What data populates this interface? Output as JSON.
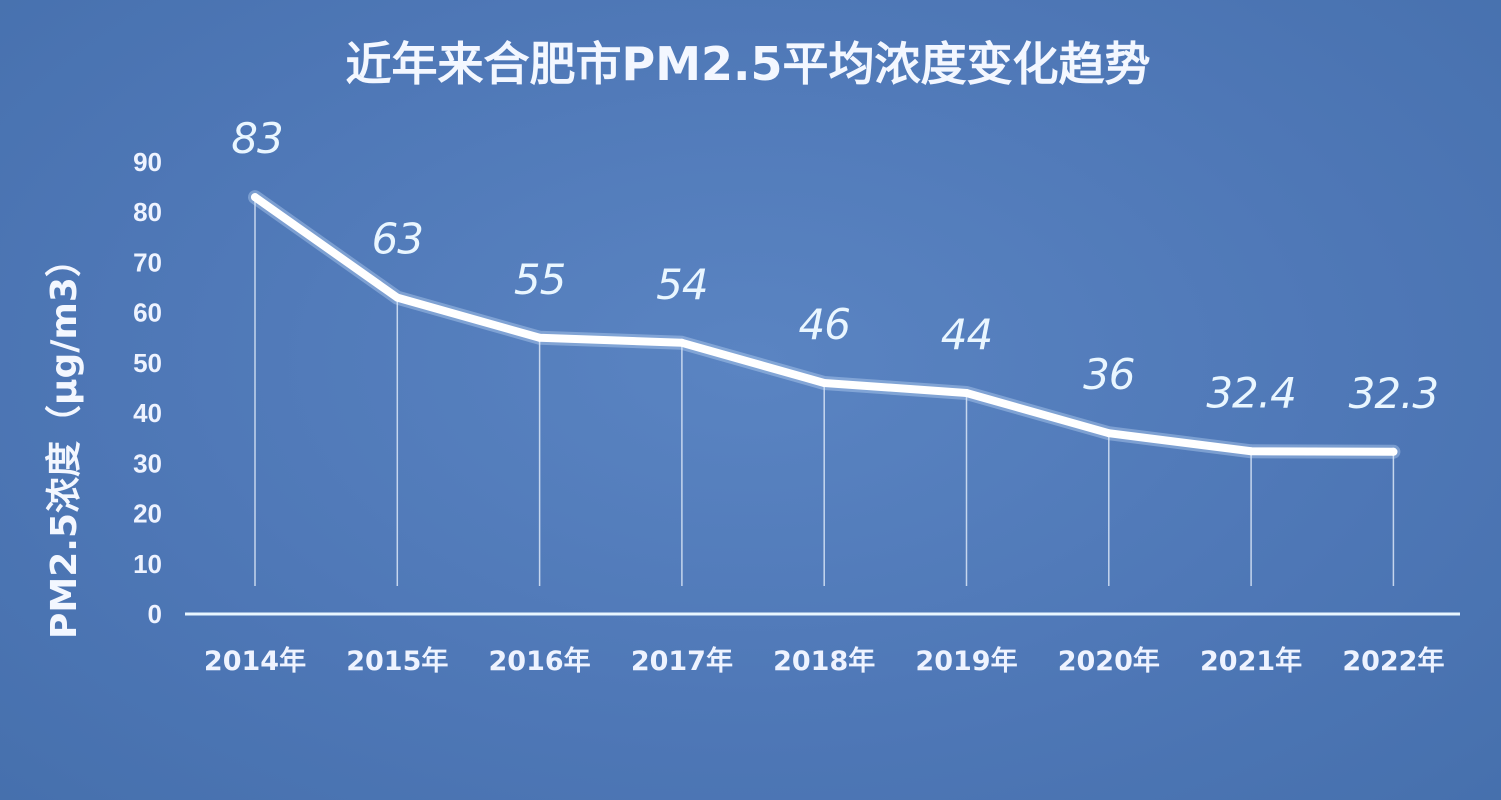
{
  "chart_data": {
    "type": "line",
    "title": "近年来合肥市PM2.5平均浓度变化趋势",
    "xlabel": "",
    "ylabel": "PM2.5浓度（μg/m3）",
    "categories": [
      "2014年",
      "2015年",
      "2016年",
      "2017年",
      "2018年",
      "2019年",
      "2020年",
      "2021年",
      "2022年"
    ],
    "values": [
      83,
      63,
      55,
      54,
      46,
      44,
      36,
      32.4,
      32.3
    ],
    "data_labels": [
      "83",
      "63",
      "55",
      "54",
      "46",
      "44",
      "36",
      "32.4",
      "32.3"
    ],
    "ylim": [
      0,
      90
    ],
    "yticks": [
      "0",
      "10",
      "20",
      "30",
      "40",
      "50",
      "60",
      "70",
      "80",
      "90"
    ],
    "grid": false,
    "drop_lines": true,
    "colors": {
      "background": "#4f79b8",
      "line": "#ffffff",
      "text": "#eef3ff",
      "axis": "#e8f6ff",
      "drop_line": "#dbe6f7"
    }
  }
}
